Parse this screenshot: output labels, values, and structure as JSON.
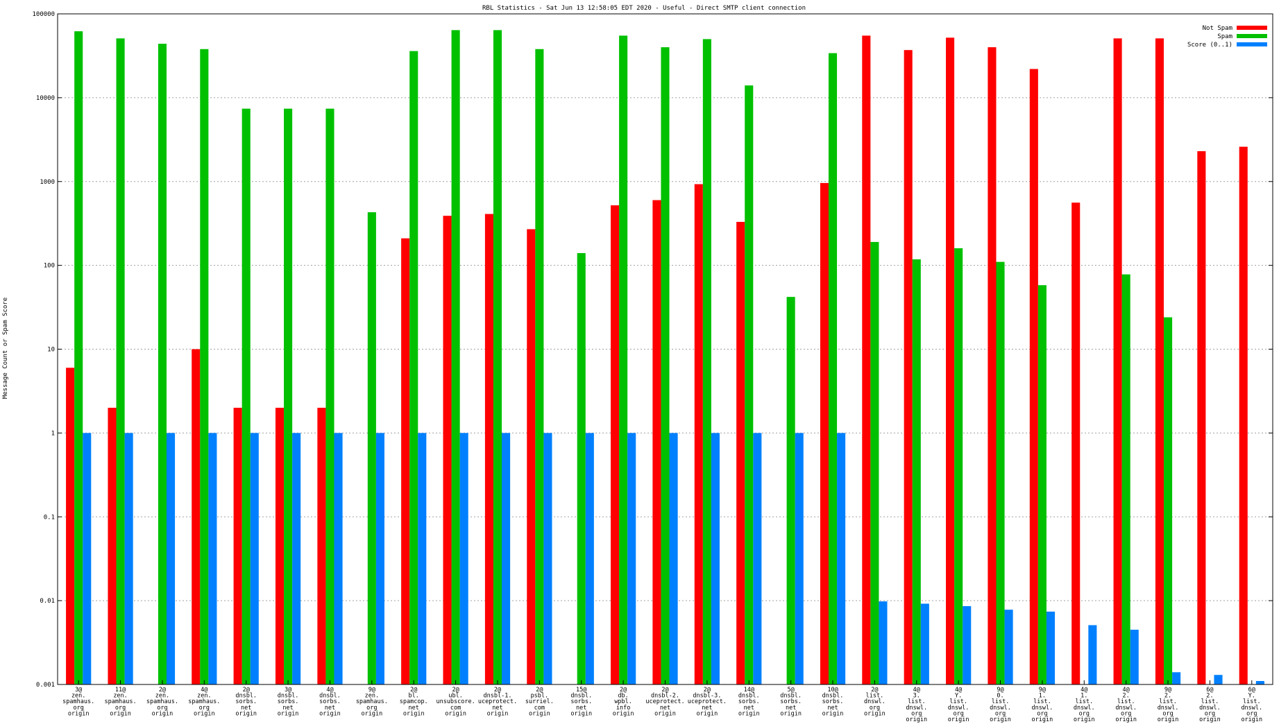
{
  "chart_data": {
    "type": "bar",
    "title": "RBL Statistics - Sat Jun 13 12:58:05 EDT 2020 - Useful - Direct SMTP client connection",
    "ylabel": "Message Count or Spam Score",
    "xlabel": "",
    "yscale": "log",
    "ylim": [
      0.001,
      100000
    ],
    "yticks": [
      "0.001",
      "0.01",
      "0.1",
      "1",
      "10",
      "100",
      "1000",
      "10000",
      "100000"
    ],
    "grid": true,
    "legend_position": "top-right",
    "colors": {
      "Not Spam": "#ff0000",
      "Spam": "#00c000",
      "Score (0..1)": "#0080ff"
    },
    "categories": [
      [
        "3@",
        "zen.",
        "spamhaus.",
        "org",
        "origin"
      ],
      [
        "11@",
        "zen.",
        "spamhaus.",
        "org",
        "origin"
      ],
      [
        "2@",
        "zen.",
        "spamhaus.",
        "org",
        "origin"
      ],
      [
        "4@",
        "zen.",
        "spamhaus.",
        "org",
        "origin"
      ],
      [
        "2@",
        "dnsbl.",
        "sorbs.",
        "net",
        "origin"
      ],
      [
        "3@",
        "dnsbl.",
        "sorbs.",
        "net",
        "origin"
      ],
      [
        "4@",
        "dnsbl.",
        "sorbs.",
        "net",
        "origin"
      ],
      [
        "9@",
        "zen.",
        "spamhaus.",
        "org",
        "origin"
      ],
      [
        "2@",
        "bl.",
        "spamcop.",
        "net",
        "origin"
      ],
      [
        "2@",
        "ubl.",
        "unsubscore.",
        "com",
        "origin"
      ],
      [
        "2@",
        "dnsbl-1.",
        "uceprotect.",
        "net",
        "origin"
      ],
      [
        "2@",
        "psbl.",
        "surriel.",
        "com",
        "origin"
      ],
      [
        "15@",
        "dnsbl.",
        "sorbs.",
        "net",
        "origin"
      ],
      [
        "2@",
        "db.",
        "wpbl.",
        "info",
        "origin"
      ],
      [
        "2@",
        "dnsbl-2.",
        "uceprotect.",
        "net",
        "origin"
      ],
      [
        "2@",
        "dnsbl-3.",
        "uceprotect.",
        "net",
        "origin"
      ],
      [
        "14@",
        "dnsbl.",
        "sorbs.",
        "net",
        "origin"
      ],
      [
        "5@",
        "dnsbl.",
        "sorbs.",
        "net",
        "origin"
      ],
      [
        "10@",
        "dnsbl.",
        "sorbs.",
        "net",
        "origin"
      ],
      [
        "2@",
        "list.",
        "dnswl.",
        "org",
        "origin"
      ],
      [
        "4@",
        "3.",
        "list.",
        "dnswl.",
        "org",
        "origin"
      ],
      [
        "4@",
        "Y.",
        "list.",
        "dnswl.",
        "org",
        "origin"
      ],
      [
        "9@",
        "0.",
        "list.",
        "dnswl.",
        "org",
        "origin"
      ],
      [
        "9@",
        "1.",
        "list.",
        "dnswl.",
        "org",
        "origin"
      ],
      [
        "4@",
        "1.",
        "list.",
        "dnswl.",
        "org",
        "origin"
      ],
      [
        "4@",
        "2.",
        "list.",
        "dnswl.",
        "org",
        "origin"
      ],
      [
        "9@",
        "2.",
        "list.",
        "dnswl.",
        "org",
        "origin"
      ],
      [
        "6@",
        "2.",
        "list.",
        "dnswl.",
        "org",
        "origin"
      ],
      [
        "6@",
        "Y.",
        "list.",
        "dnswl.",
        "org",
        "origin"
      ]
    ],
    "series": [
      {
        "name": "Not Spam",
        "values": [
          6,
          2,
          null,
          10,
          2,
          2,
          2,
          null,
          210,
          390,
          410,
          270,
          null,
          520,
          600,
          930,
          330,
          null,
          960,
          55000,
          37000,
          52000,
          40000,
          22000,
          560,
          51000,
          51000,
          2300,
          2600
        ]
      },
      {
        "name": "Spam",
        "values": [
          62000,
          51000,
          44000,
          38000,
          7400,
          7400,
          7400,
          430,
          36000,
          64000,
          64000,
          38000,
          140,
          55000,
          40000,
          50000,
          14000,
          42,
          34000,
          190,
          118,
          160,
          110,
          58,
          null,
          78,
          24,
          null,
          null
        ]
      },
      {
        "name": "Score (0..1)",
        "values": [
          1,
          1,
          1,
          1,
          1,
          1,
          1,
          1,
          1,
          1,
          1,
          1,
          1,
          1,
          1,
          1,
          1,
          1,
          1,
          0.0098,
          0.0092,
          0.0086,
          0.0078,
          0.0074,
          0.0051,
          0.0045,
          0.0014,
          0.0013,
          0.0011
        ]
      }
    ]
  }
}
